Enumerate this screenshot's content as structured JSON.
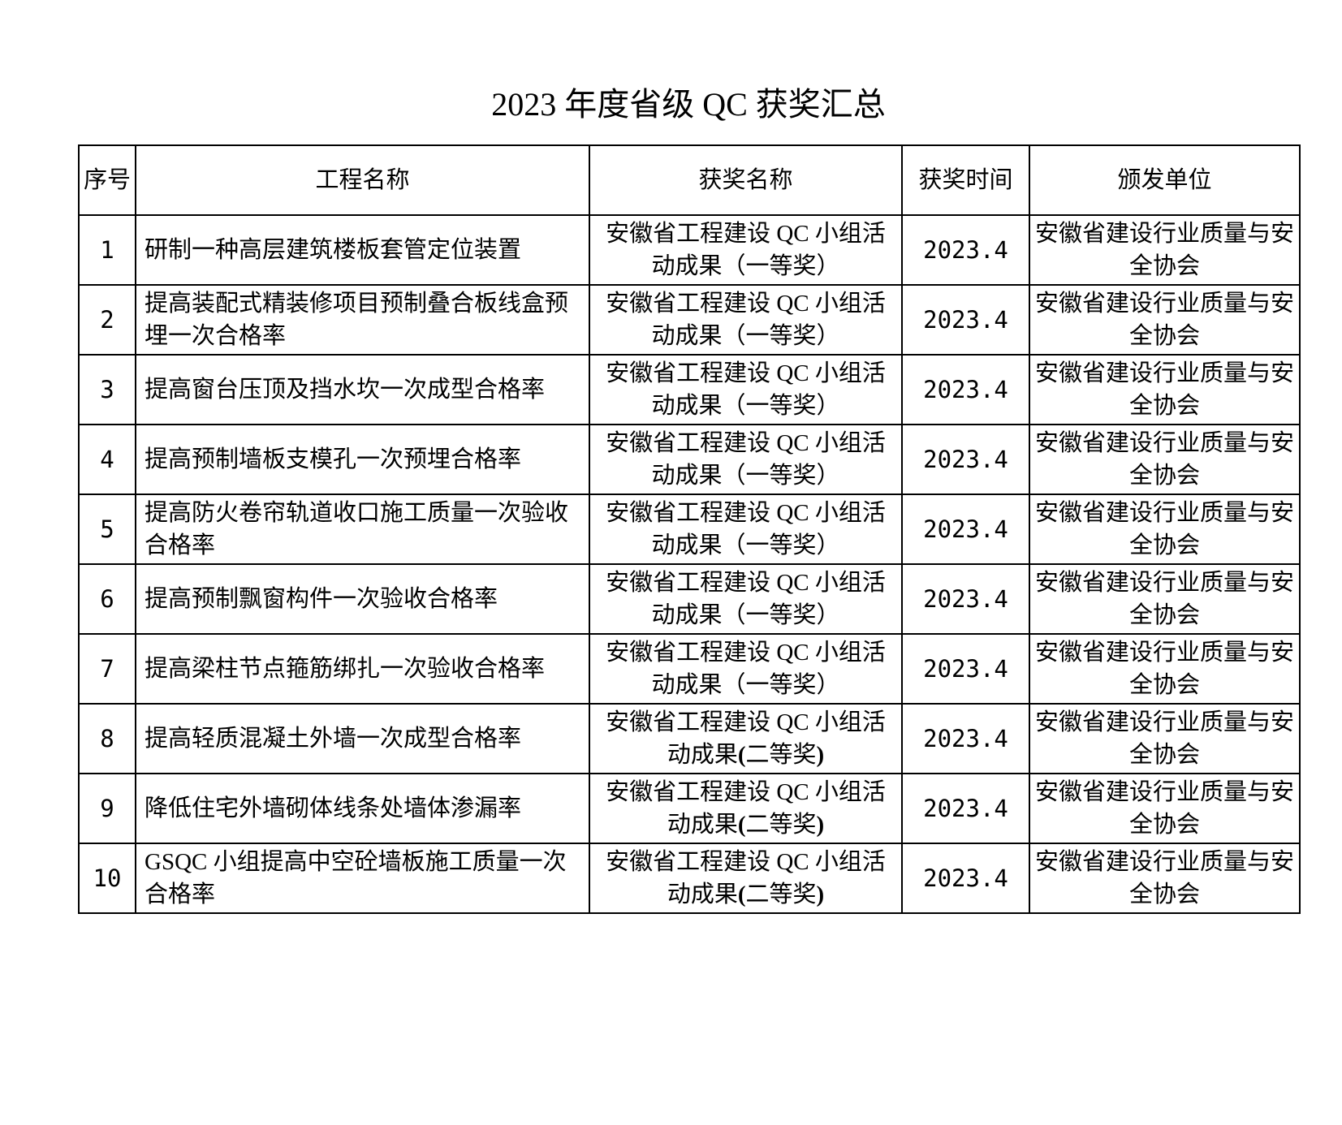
{
  "page": {
    "background_color": "#ffffff",
    "text_color": "#000000",
    "border_color": "#000000"
  },
  "title": "2023 年度省级 QC 获奖汇总",
  "table": {
    "headers": {
      "no": "序号",
      "project": "工程名称",
      "award": "获奖名称",
      "time": "获奖时间",
      "issuer": "颁发单位"
    },
    "rows": [
      {
        "no": "1",
        "project": "研制一种高层建筑楼板套管定位装置",
        "award": {
          "prefix": "安徽省工程建设 QC 小组活动成果",
          "open": "（",
          "prize": "一等奖",
          "close": "）",
          "bold_parens": false
        },
        "time": "2023.4",
        "issuer": "安徽省建设行业质量与安全协会"
      },
      {
        "no": "2",
        "project": "提高装配式精装修项目预制叠合板线盒预埋一次合格率",
        "award": {
          "prefix": "安徽省工程建设 QC 小组活动成果",
          "open": "（",
          "prize": "一等奖",
          "close": "）",
          "bold_parens": false
        },
        "time": "2023.4",
        "issuer": "安徽省建设行业质量与安全协会"
      },
      {
        "no": "3",
        "project": "提高窗台压顶及挡水坎一次成型合格率",
        "award": {
          "prefix": "安徽省工程建设 QC 小组活动成果",
          "open": "（",
          "prize": "一等奖",
          "close": "）",
          "bold_parens": false
        },
        "time": "2023.4",
        "issuer": "安徽省建设行业质量与安全协会"
      },
      {
        "no": "4",
        "project": "提高预制墙板支模孔一次预埋合格率",
        "award": {
          "prefix": "安徽省工程建设 QC 小组活动成果",
          "open": "（",
          "prize": "一等奖",
          "close": "）",
          "bold_parens": false
        },
        "time": "2023.4",
        "issuer": "安徽省建设行业质量与安全协会"
      },
      {
        "no": "5",
        "project": "提高防火卷帘轨道收口施工质量一次验收合格率",
        "award": {
          "prefix": "安徽省工程建设 QC 小组活动成果",
          "open": "（",
          "prize": "一等奖",
          "close": "）",
          "bold_parens": false
        },
        "time": "2023.4",
        "issuer": "安徽省建设行业质量与安全协会"
      },
      {
        "no": "6",
        "project": "提高预制飘窗构件一次验收合格率",
        "award": {
          "prefix": "安徽省工程建设 QC 小组活动成果",
          "open": "（",
          "prize": "一等奖",
          "close": "）",
          "bold_parens": false
        },
        "time": "2023.4",
        "issuer": "安徽省建设行业质量与安全协会"
      },
      {
        "no": "7",
        "project": "提高梁柱节点箍筋绑扎一次验收合格率",
        "award": {
          "prefix": "安徽省工程建设 QC 小组活动成果",
          "open": "（",
          "prize": "一等奖",
          "close": "）",
          "bold_parens": false
        },
        "time": "2023.4",
        "issuer": "安徽省建设行业质量与安全协会"
      },
      {
        "no": "8",
        "project": "提高轻质混凝土外墙一次成型合格率",
        "award": {
          "prefix": "安徽省工程建设 QC 小组活动成果",
          "open": "(",
          "prize": "二等奖",
          "close": ")",
          "bold_parens": true
        },
        "time": "2023.4",
        "issuer": "安徽省建设行业质量与安全协会"
      },
      {
        "no": "9",
        "project": "降低住宅外墙砌体线条处墙体渗漏率",
        "award": {
          "prefix": "安徽省工程建设 QC 小组活动成果",
          "open": "(",
          "prize": "二等奖",
          "close": ")",
          "bold_parens": true
        },
        "time": "2023.4",
        "issuer": "安徽省建设行业质量与安全协会"
      },
      {
        "no": "10",
        "project": "GSQC 小组提高中空砼墙板施工质量一次合格率",
        "award": {
          "prefix": "安徽省工程建设 QC 小组活动成果",
          "open": "(",
          "prize": "二等奖",
          "close": ")",
          "bold_parens": true
        },
        "time": "2023.4",
        "issuer": "安徽省建设行业质量与安全协会"
      }
    ]
  }
}
